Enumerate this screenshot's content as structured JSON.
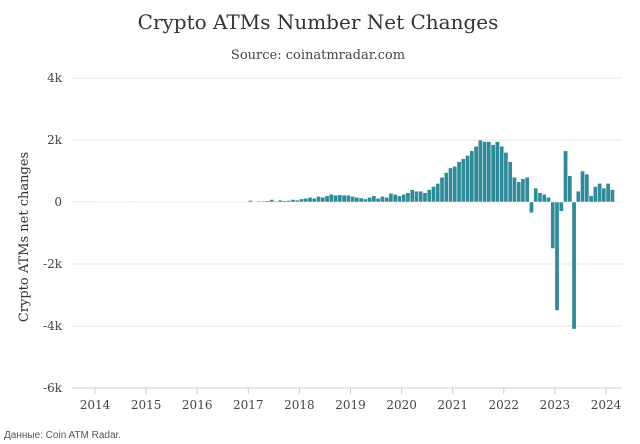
{
  "chart_data": {
    "type": "bar",
    "title": "Crypto ATMs Number Net Changes",
    "subtitle": "Source: coinatmradar.com",
    "ylabel": "Crypto ATMs net changes",
    "xlabel": "",
    "ylim": [
      -6000,
      4000
    ],
    "y_ticks": [
      {
        "value": 4000,
        "label": "4k"
      },
      {
        "value": 2000,
        "label": "2k"
      },
      {
        "value": 0,
        "label": "0"
      },
      {
        "value": -2000,
        "label": "-2k"
      },
      {
        "value": -4000,
        "label": "-4k"
      },
      {
        "value": -6000,
        "label": "-6k"
      }
    ],
    "x_ticks": [
      "2014",
      "2015",
      "2016",
      "2017",
      "2018",
      "2019",
      "2020",
      "2021",
      "2022",
      "2023",
      "2024"
    ],
    "grid": "horizontal",
    "bar_color": "#2f8a9a",
    "bar_edge_color": "#ffffff",
    "gridline_color": "#e6e6e6",
    "series": [
      {
        "values": [
          {
            "x": "2014-01",
            "y": 5
          },
          {
            "x": "2014-02",
            "y": 3
          },
          {
            "x": "2014-03",
            "y": 4
          },
          {
            "x": "2014-04",
            "y": 2
          },
          {
            "x": "2014-05",
            "y": 3
          },
          {
            "x": "2014-06",
            "y": 5
          },
          {
            "x": "2014-07",
            "y": 3
          },
          {
            "x": "2014-08",
            "y": 4
          },
          {
            "x": "2014-09",
            "y": 20
          },
          {
            "x": "2014-10",
            "y": 4
          },
          {
            "x": "2014-11",
            "y": 3
          },
          {
            "x": "2014-12",
            "y": 5
          },
          {
            "x": "2015-01",
            "y": 4
          },
          {
            "x": "2015-02",
            "y": 3
          },
          {
            "x": "2015-03",
            "y": 5
          },
          {
            "x": "2015-04",
            "y": 4
          },
          {
            "x": "2015-05",
            "y": 3
          },
          {
            "x": "2015-06",
            "y": 4
          },
          {
            "x": "2015-07",
            "y": 5
          },
          {
            "x": "2015-08",
            "y": 3
          },
          {
            "x": "2015-09",
            "y": 4
          },
          {
            "x": "2015-10",
            "y": 3
          },
          {
            "x": "2015-11",
            "y": 5
          },
          {
            "x": "2015-12",
            "y": 4
          },
          {
            "x": "2016-01",
            "y": 5
          },
          {
            "x": "2016-02",
            "y": 4
          },
          {
            "x": "2016-03",
            "y": 3
          },
          {
            "x": "2016-04",
            "y": 5
          },
          {
            "x": "2016-05",
            "y": 4
          },
          {
            "x": "2016-06",
            "y": 3
          },
          {
            "x": "2016-07",
            "y": 5
          },
          {
            "x": "2016-08",
            "y": 4
          },
          {
            "x": "2016-09",
            "y": 5
          },
          {
            "x": "2016-10",
            "y": 10
          },
          {
            "x": "2016-11",
            "y": 8
          },
          {
            "x": "2016-12",
            "y": 12
          },
          {
            "x": "2017-01",
            "y": 50
          },
          {
            "x": "2017-02",
            "y": 20
          },
          {
            "x": "2017-03",
            "y": 30
          },
          {
            "x": "2017-04",
            "y": 30
          },
          {
            "x": "2017-05",
            "y": 40
          },
          {
            "x": "2017-06",
            "y": 80
          },
          {
            "x": "2017-07",
            "y": 30
          },
          {
            "x": "2017-08",
            "y": 60
          },
          {
            "x": "2017-09",
            "y": 40
          },
          {
            "x": "2017-10",
            "y": 50
          },
          {
            "x": "2017-11",
            "y": 80
          },
          {
            "x": "2017-12",
            "y": 60
          },
          {
            "x": "2018-01",
            "y": 100
          },
          {
            "x": "2018-02",
            "y": 120
          },
          {
            "x": "2018-03",
            "y": 150
          },
          {
            "x": "2018-04",
            "y": 120
          },
          {
            "x": "2018-05",
            "y": 180
          },
          {
            "x": "2018-06",
            "y": 150
          },
          {
            "x": "2018-07",
            "y": 200
          },
          {
            "x": "2018-08",
            "y": 250
          },
          {
            "x": "2018-09",
            "y": 220
          },
          {
            "x": "2018-10",
            "y": 230
          },
          {
            "x": "2018-11",
            "y": 220
          },
          {
            "x": "2018-12",
            "y": 220
          },
          {
            "x": "2019-01",
            "y": 180
          },
          {
            "x": "2019-02",
            "y": 150
          },
          {
            "x": "2019-03",
            "y": 130
          },
          {
            "x": "2019-04",
            "y": 100
          },
          {
            "x": "2019-05",
            "y": 150
          },
          {
            "x": "2019-06",
            "y": 200
          },
          {
            "x": "2019-07",
            "y": 120
          },
          {
            "x": "2019-08",
            "y": 180
          },
          {
            "x": "2019-09",
            "y": 150
          },
          {
            "x": "2019-10",
            "y": 280
          },
          {
            "x": "2019-11",
            "y": 250
          },
          {
            "x": "2019-12",
            "y": 200
          },
          {
            "x": "2020-01",
            "y": 250
          },
          {
            "x": "2020-02",
            "y": 300
          },
          {
            "x": "2020-03",
            "y": 400
          },
          {
            "x": "2020-04",
            "y": 350
          },
          {
            "x": "2020-05",
            "y": 350
          },
          {
            "x": "2020-06",
            "y": 300
          },
          {
            "x": "2020-07",
            "y": 400
          },
          {
            "x": "2020-08",
            "y": 500
          },
          {
            "x": "2020-09",
            "y": 600
          },
          {
            "x": "2020-10",
            "y": 800
          },
          {
            "x": "2020-11",
            "y": 950
          },
          {
            "x": "2020-12",
            "y": 1100
          },
          {
            "x": "2021-01",
            "y": 1150
          },
          {
            "x": "2021-02",
            "y": 1300
          },
          {
            "x": "2021-03",
            "y": 1400
          },
          {
            "x": "2021-04",
            "y": 1500
          },
          {
            "x": "2021-05",
            "y": 1650
          },
          {
            "x": "2021-06",
            "y": 1800
          },
          {
            "x": "2021-07",
            "y": 2000
          },
          {
            "x": "2021-08",
            "y": 1950
          },
          {
            "x": "2021-09",
            "y": 1950
          },
          {
            "x": "2021-10",
            "y": 1850
          },
          {
            "x": "2021-11",
            "y": 1950
          },
          {
            "x": "2021-12",
            "y": 1800
          },
          {
            "x": "2022-01",
            "y": 1600
          },
          {
            "x": "2022-02",
            "y": 1300
          },
          {
            "x": "2022-03",
            "y": 800
          },
          {
            "x": "2022-04",
            "y": 650
          },
          {
            "x": "2022-05",
            "y": 750
          },
          {
            "x": "2022-06",
            "y": 800
          },
          {
            "x": "2022-07",
            "y": -350
          },
          {
            "x": "2022-08",
            "y": 450
          },
          {
            "x": "2022-09",
            "y": 300
          },
          {
            "x": "2022-10",
            "y": 250
          },
          {
            "x": "2022-11",
            "y": 150
          },
          {
            "x": "2022-12",
            "y": -1500
          },
          {
            "x": "2023-01",
            "y": -3500
          },
          {
            "x": "2023-02",
            "y": -300
          },
          {
            "x": "2023-03",
            "y": 1650
          },
          {
            "x": "2023-04",
            "y": 850
          },
          {
            "x": "2023-05",
            "y": -4100
          },
          {
            "x": "2023-06",
            "y": 350
          },
          {
            "x": "2023-07",
            "y": 1000
          },
          {
            "x": "2023-08",
            "y": 900
          },
          {
            "x": "2023-09",
            "y": 200
          },
          {
            "x": "2023-10",
            "y": 500
          },
          {
            "x": "2023-11",
            "y": 600
          },
          {
            "x": "2023-12",
            "y": 450
          },
          {
            "x": "2024-01",
            "y": 600
          },
          {
            "x": "2024-02",
            "y": 400
          }
        ]
      }
    ]
  },
  "footer": {
    "credit": "Данные: Coin ATM Radar."
  }
}
